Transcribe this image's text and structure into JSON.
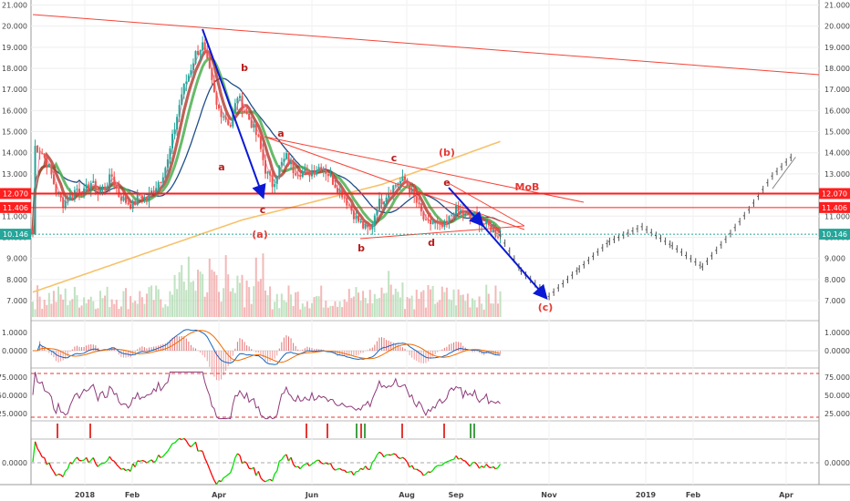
{
  "chart_data": {
    "type": "candlestick",
    "price": {
      "yticks": [
        "7.000",
        "8.000",
        "9.000",
        "10.000",
        "11.000",
        "12.000",
        "13.000",
        "14.000",
        "15.000",
        "16.000",
        "17.000",
        "18.000",
        "19.000",
        "20.000",
        "21.000"
      ],
      "ylim": [
        6.0,
        21.0
      ],
      "badges": [
        {
          "value": 12.07,
          "label": "12.070",
          "color": "#ff1e1e"
        },
        {
          "value": 11.406,
          "label": "11.406",
          "color": "#ff1e1e"
        },
        {
          "value": 10.146,
          "label": "10.146",
          "color": "#26a69a"
        }
      ],
      "closes_ohlc": [
        [
          1,
          14.3
        ],
        [
          4,
          14.0
        ],
        [
          7,
          13.3
        ],
        [
          10,
          12.2
        ],
        [
          13,
          11.6
        ],
        [
          16,
          12.0
        ],
        [
          19,
          12.3
        ],
        [
          22,
          12.1
        ],
        [
          25,
          12.6
        ],
        [
          28,
          12.1
        ],
        [
          31,
          12.4
        ],
        [
          34,
          12.9
        ],
        [
          37,
          12.0
        ],
        [
          40,
          11.7
        ],
        [
          43,
          11.5
        ],
        [
          46,
          12.0
        ],
        [
          49,
          11.8
        ],
        [
          52,
          12.3
        ],
        [
          55,
          12.8
        ],
        [
          58,
          13.6
        ],
        [
          61,
          15.2
        ],
        [
          64,
          16.8
        ],
        [
          67,
          17.7
        ],
        [
          70,
          18.7
        ],
        [
          73,
          19.1
        ],
        [
          76,
          17.8
        ],
        [
          79,
          16.2
        ],
        [
          82,
          15.8
        ],
        [
          85,
          15.3
        ],
        [
          88,
          16.7
        ],
        [
          91,
          16.0
        ],
        [
          94,
          15.4
        ],
        [
          97,
          14.6
        ],
        [
          100,
          13.2
        ],
        [
          103,
          12.5
        ],
        [
          106,
          13.3
        ],
        [
          109,
          13.8
        ],
        [
          112,
          13.2
        ],
        [
          115,
          13.1
        ],
        [
          118,
          13.0
        ],
        [
          121,
          13.2
        ],
        [
          124,
          13.4
        ],
        [
          127,
          13.0
        ],
        [
          130,
          12.5
        ],
        [
          133,
          12.1
        ],
        [
          136,
          11.5
        ],
        [
          139,
          10.9
        ],
        [
          142,
          10.5
        ],
        [
          145,
          10.3
        ],
        [
          148,
          11.5
        ],
        [
          151,
          11.9
        ],
        [
          154,
          12.3
        ],
        [
          157,
          12.6
        ],
        [
          160,
          12.7
        ],
        [
          163,
          12.1
        ],
        [
          166,
          11.4
        ],
        [
          169,
          10.6
        ],
        [
          172,
          10.7
        ],
        [
          175,
          10.4
        ],
        [
          178,
          10.6
        ],
        [
          181,
          11.3
        ],
        [
          184,
          11.2
        ],
        [
          187,
          10.9
        ],
        [
          190,
          11.0
        ],
        [
          193,
          10.7
        ],
        [
          196,
          10.5
        ],
        [
          199,
          10.2
        ],
        [
          201,
          10.146
        ]
      ],
      "forecast_path": [
        [
          201,
          10.1
        ],
        [
          210,
          8.4
        ],
        [
          222,
          7.2
        ],
        [
          235,
          8.5
        ],
        [
          248,
          9.8
        ],
        [
          262,
          10.5
        ],
        [
          275,
          9.6
        ],
        [
          288,
          8.6
        ],
        [
          298,
          9.9
        ],
        [
          308,
          11.3
        ],
        [
          318,
          12.9
        ],
        [
          328,
          14.0
        ]
      ]
    },
    "x_labels": [
      "2018",
      "Feb",
      "Apr",
      "Jun",
      "Aug",
      "Sep",
      "Nov",
      "2019",
      "Feb",
      "Apr"
    ],
    "wave_labels": [
      {
        "text": "a"
      },
      {
        "text": "b"
      },
      {
        "text": "c"
      },
      {
        "text": "a"
      },
      {
        "text": "(a)"
      },
      {
        "text": "b"
      },
      {
        "text": "c"
      },
      {
        "text": "(b)"
      },
      {
        "text": "d"
      },
      {
        "text": "e"
      },
      {
        "text": "MoB"
      },
      {
        "text": "(c)"
      }
    ],
    "macd": {
      "yticks": [
        "0.0000",
        "1.0000"
      ]
    },
    "rsi": {
      "yticks": [
        "25.0000",
        "50.0000",
        "75.0000"
      ],
      "levels": [
        80,
        20
      ]
    },
    "osc": {
      "yticks": [
        "0.0000"
      ]
    }
  },
  "colors": {
    "up": "#26a69a",
    "down": "#ef5350",
    "forecast": "#555555",
    "ma_green": "#4caf50",
    "ma_red": "#b03a2e",
    "ma_blue": "#1e4f8a",
    "ma_yellow": "#f6c26b",
    "wave": "#0b19d6",
    "trend": "#f44336"
  }
}
